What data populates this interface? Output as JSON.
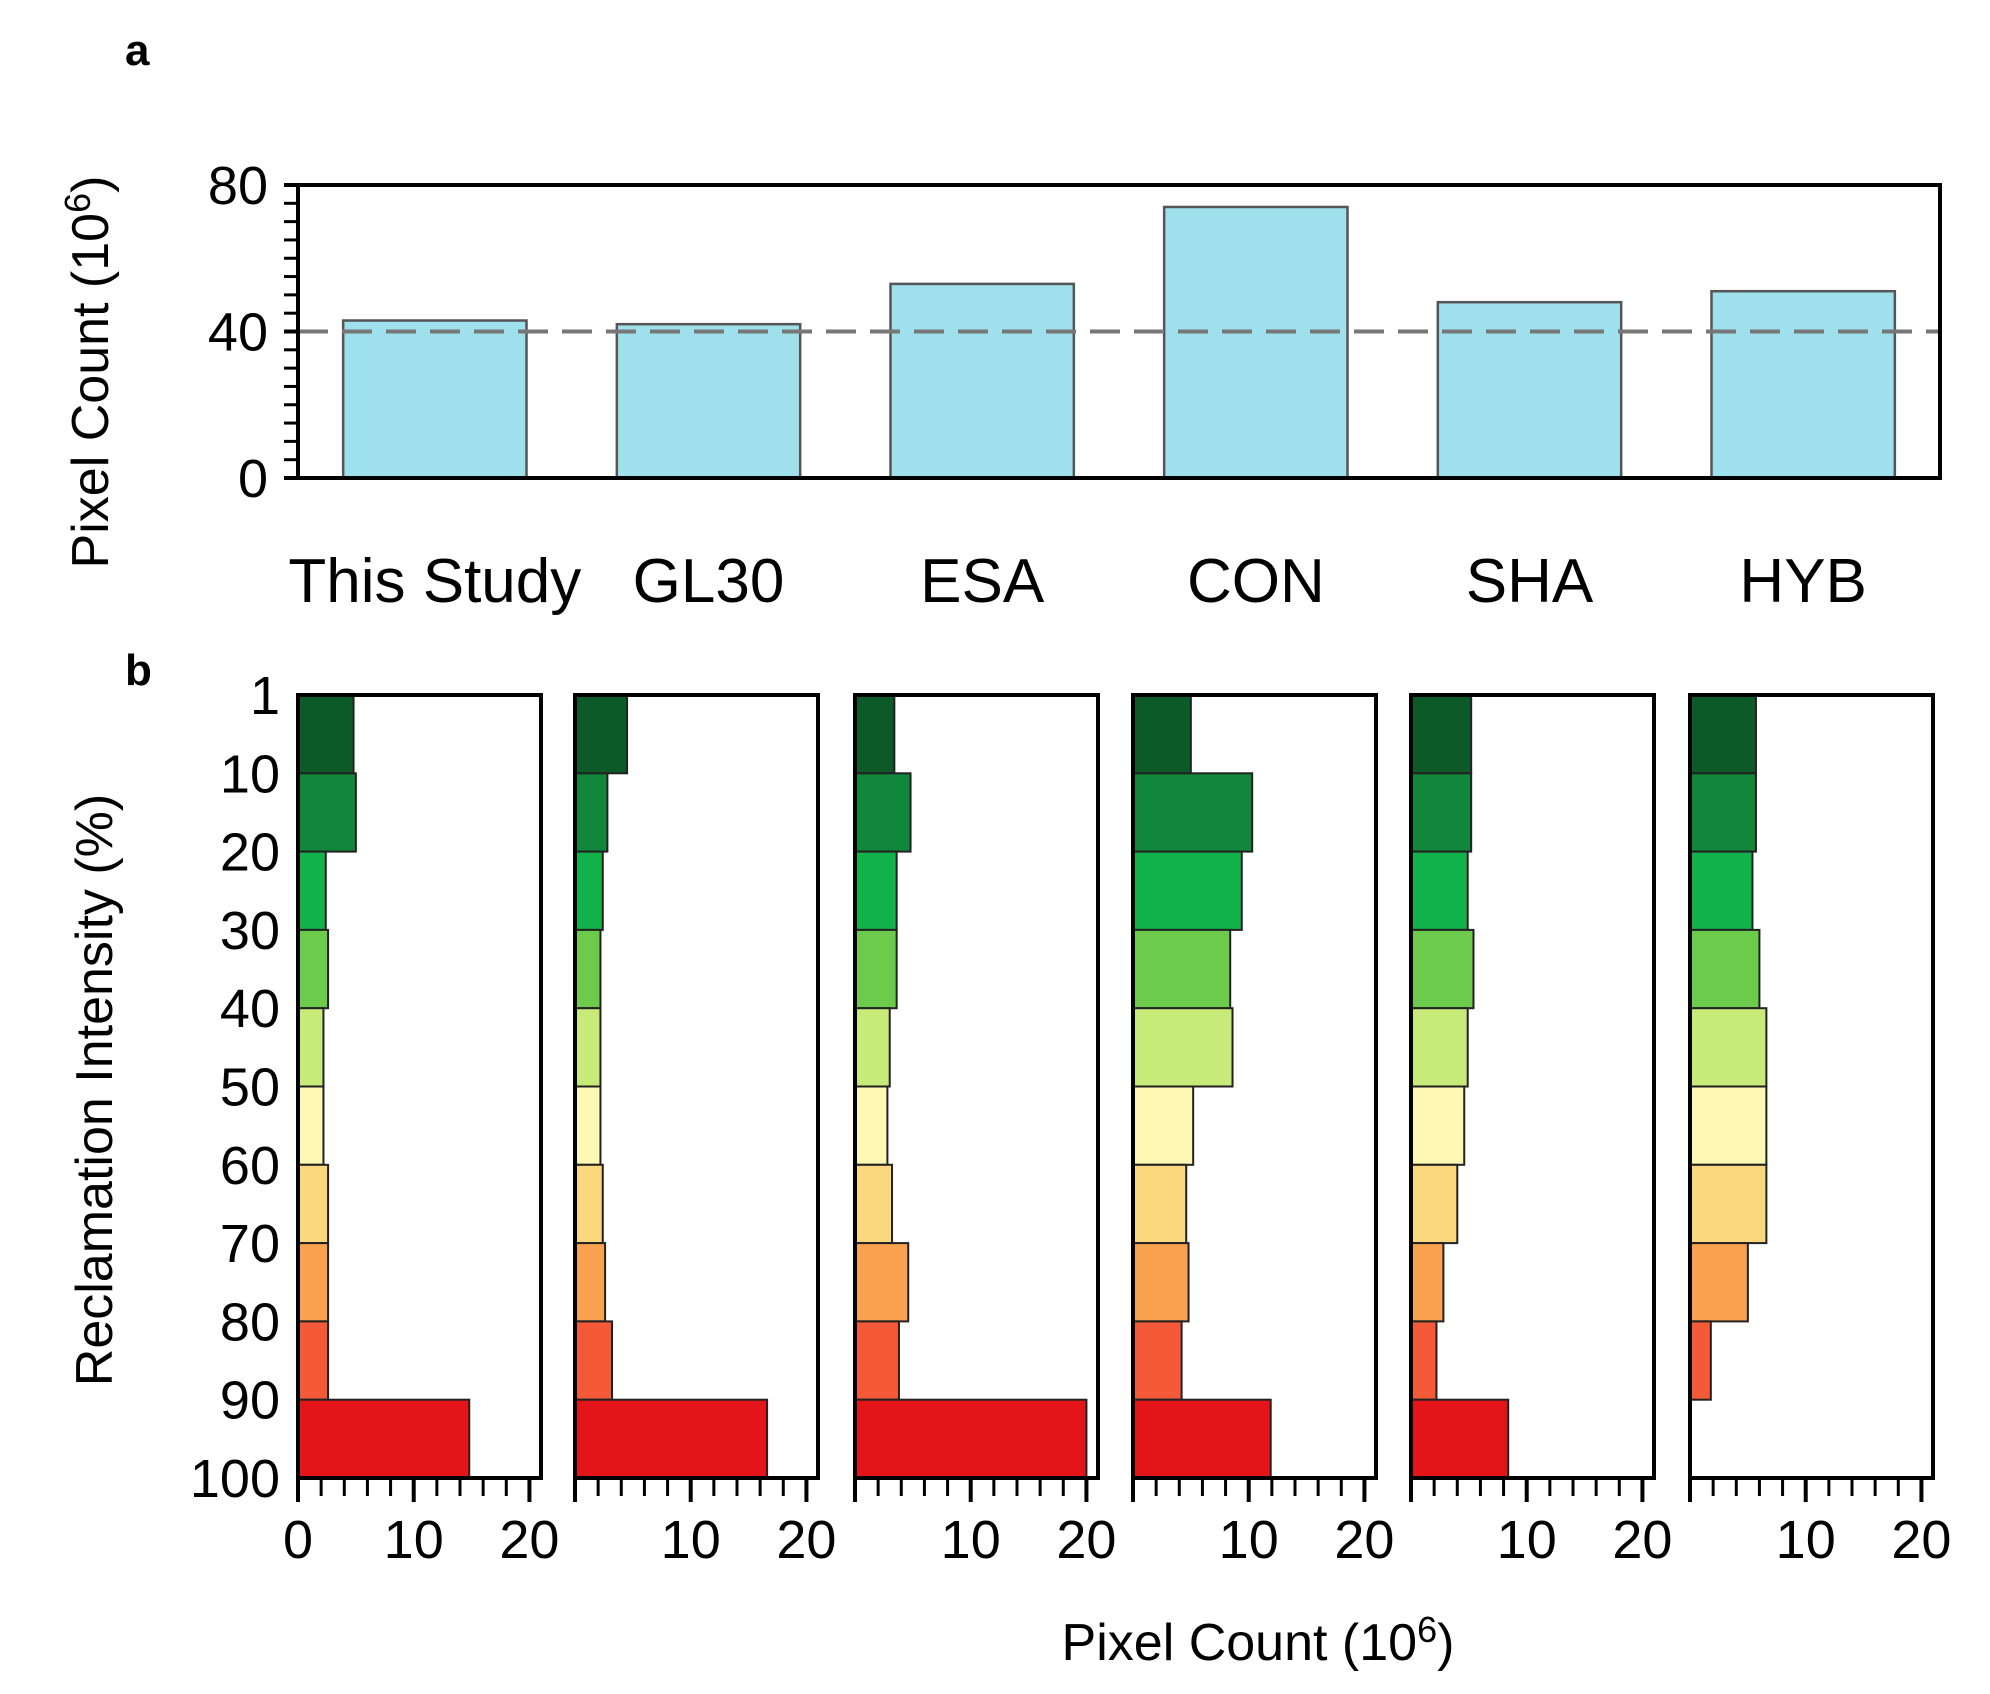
{
  "chart_data": [
    {
      "panel": "a",
      "type": "bar",
      "title": "",
      "ylabel": "Pixel Count (10",
      "ylabel_sup": "6",
      "ylabel_close": ")",
      "xlabel": "",
      "ylim": [
        0,
        80
      ],
      "yticks": [
        0,
        40,
        80
      ],
      "y_minor_step": 5,
      "reference_line": 40,
      "categories": [
        "This Study",
        "GL30",
        "ESA",
        "CON",
        "SHA",
        "HYB"
      ],
      "values": [
        43,
        42,
        53,
        74,
        48,
        51
      ],
      "bar_color": "#9ee0eb"
    },
    {
      "panel": "b",
      "type": "bar",
      "orientation": "horizontal",
      "ylabel": "Reclamation Intensity (%)",
      "xlabel": "Pixel Count (10",
      "xlabel_sup": "6",
      "xlabel_close": ")",
      "xlim": [
        0,
        21
      ],
      "xticks": [
        0,
        10,
        20
      ],
      "x_minor_step": 2,
      "interval_edges": [
        1,
        10,
        20,
        30,
        40,
        50,
        60,
        70,
        80,
        90,
        100
      ],
      "interval_colors": [
        "#0b5a27",
        "#10873a",
        "#12b34a",
        "#6ccb4b",
        "#c8ea78",
        "#fdf8b4",
        "#fbd77e",
        "#f9a24f",
        "#f45a38",
        "#e41519"
      ],
      "series": [
        {
          "name": "This Study",
          "values": [
            4.8,
            5.0,
            2.4,
            2.6,
            2.2,
            2.2,
            2.6,
            2.6,
            2.6,
            14.8
          ],
          "first_tick_label": "0"
        },
        {
          "name": "GL30",
          "values": [
            4.5,
            2.8,
            2.4,
            2.2,
            2.2,
            2.2,
            2.4,
            2.6,
            3.2,
            16.6
          ],
          "first_tick_label": ""
        },
        {
          "name": "ESA",
          "values": [
            3.4,
            4.8,
            3.6,
            3.6,
            3.0,
            2.8,
            3.2,
            4.6,
            3.8,
            20.0
          ],
          "first_tick_label": ""
        },
        {
          "name": "CON",
          "values": [
            5.0,
            10.3,
            9.4,
            8.4,
            8.6,
            5.2,
            4.6,
            4.8,
            4.2,
            11.9
          ],
          "first_tick_label": ""
        },
        {
          "name": "SHA",
          "values": [
            5.2,
            5.2,
            4.9,
            5.4,
            4.9,
            4.6,
            4.0,
            2.8,
            2.2,
            8.4
          ],
          "first_tick_label": ""
        },
        {
          "name": "HYB",
          "values": [
            5.7,
            5.7,
            5.4,
            6.0,
            6.6,
            6.6,
            6.6,
            5.0,
            1.8,
            0.0
          ],
          "first_tick_label": ""
        }
      ]
    }
  ]
}
